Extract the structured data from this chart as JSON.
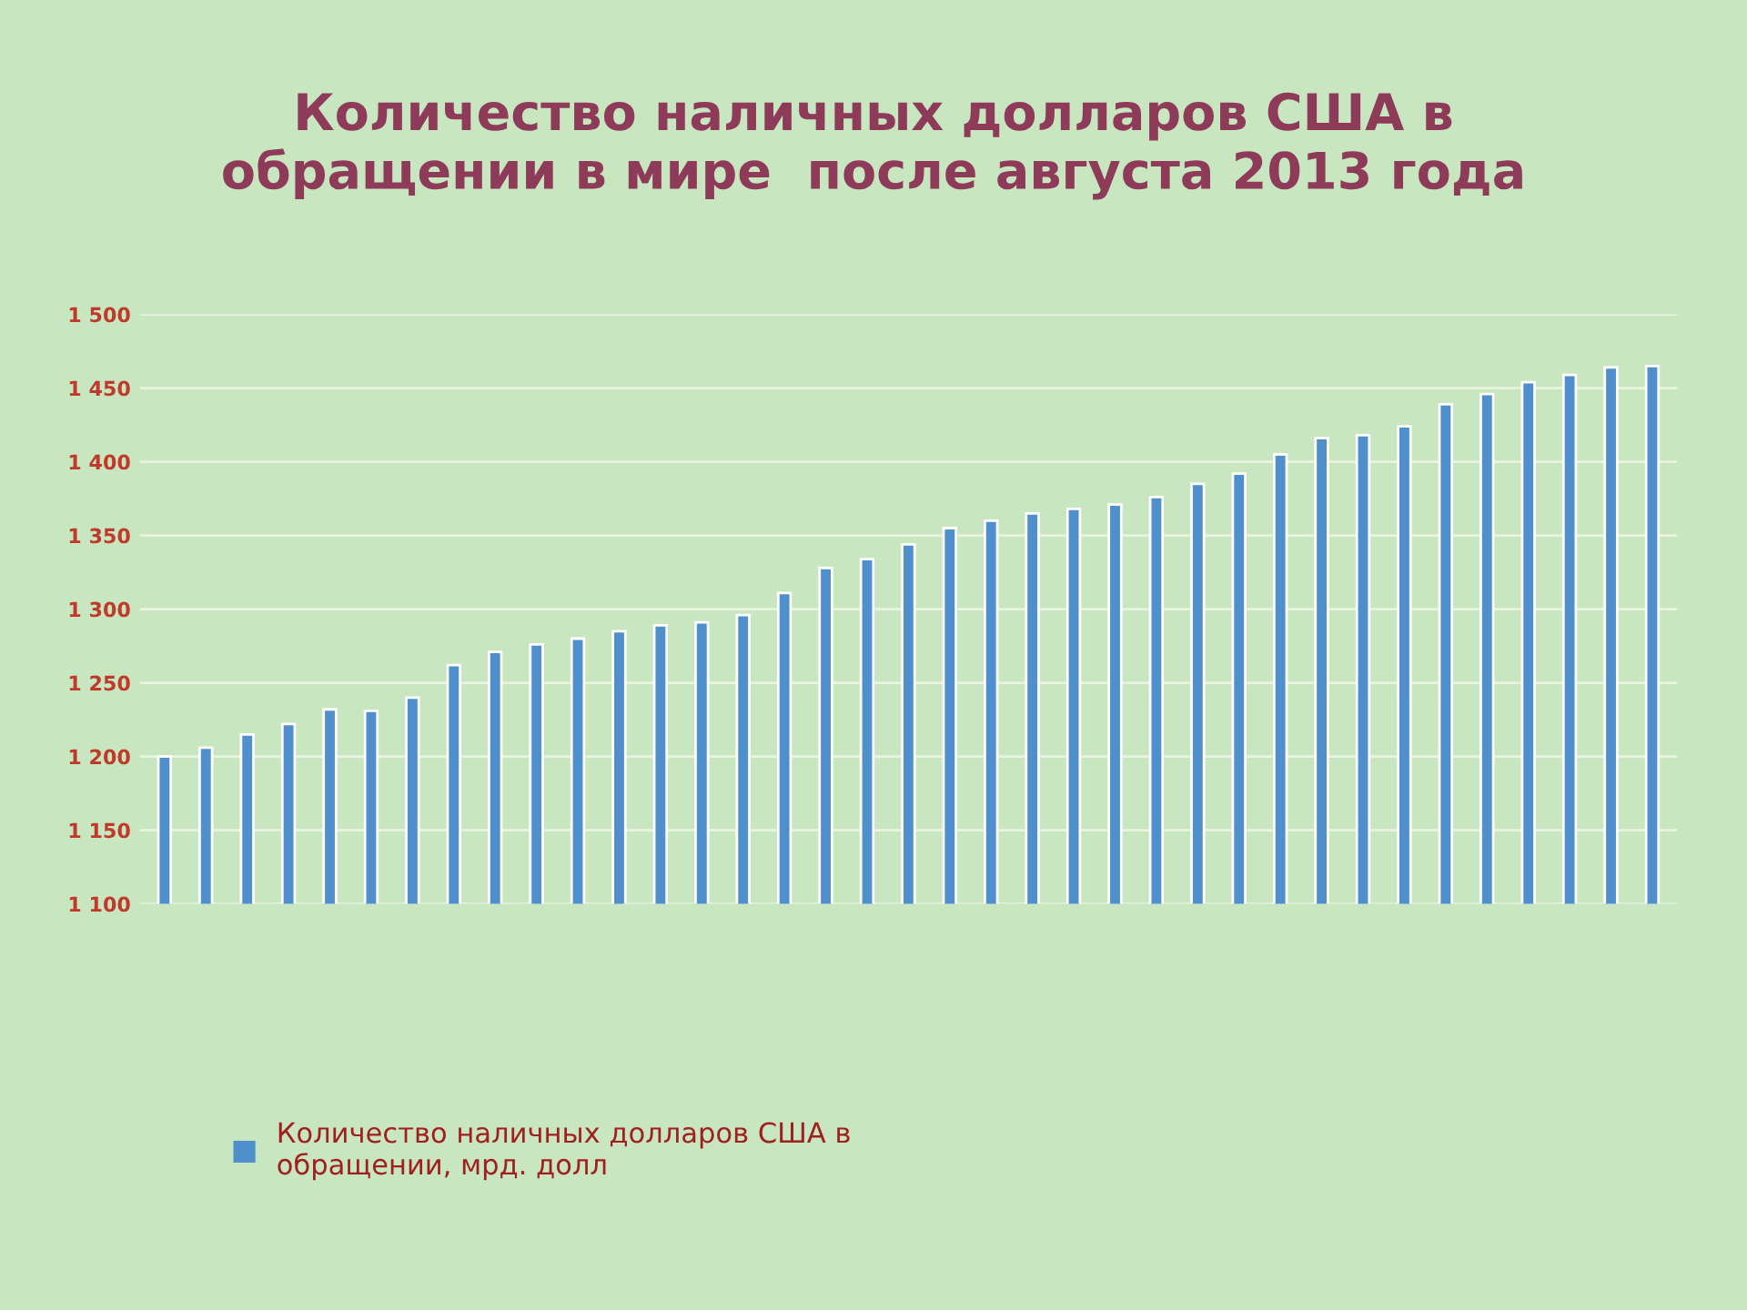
{
  "chart_data": {
    "type": "bar",
    "title": "Количество наличных долларов США в\nобращении в мире  после августа 2013 года",
    "categories": [
      null,
      null,
      null,
      null,
      null,
      null,
      null,
      null,
      null,
      null,
      null,
      null,
      null,
      null,
      null,
      null,
      null,
      null,
      null,
      null,
      null,
      null,
      null,
      null,
      null,
      null,
      null,
      null,
      null,
      null,
      null,
      null,
      null,
      null,
      null,
      null,
      null
    ],
    "series": [
      {
        "name": "Количество наличных долларов США в\nобращении, мрд. долл",
        "color": "#4f8fcc",
        "values": [
          1200,
          1206,
          1215,
          1222,
          1232,
          1231,
          1240,
          1262,
          1271,
          1276,
          1280,
          1285,
          1289,
          1291,
          1296,
          1311,
          1328,
          1334,
          1344,
          1355,
          1360,
          1365,
          1368,
          1371,
          1376,
          1385,
          1392,
          1405,
          1416,
          1418,
          1424,
          1439,
          1446,
          1454,
          1459,
          1464,
          1465
        ]
      }
    ],
    "ylim": [
      1100,
      1500
    ],
    "yticks": [
      {
        "value": 1100,
        "label": "1 100"
      },
      {
        "value": 1150,
        "label": "1 150"
      },
      {
        "value": 1200,
        "label": "1 200"
      },
      {
        "value": 1250,
        "label": "1 250"
      },
      {
        "value": 1300,
        "label": "1 300"
      },
      {
        "value": 1350,
        "label": "1 350"
      },
      {
        "value": 1400,
        "label": "1 400"
      },
      {
        "value": 1450,
        "label": "1 450"
      },
      {
        "value": 1500,
        "label": "1 500"
      }
    ],
    "grid": "y",
    "legend": "bottom left"
  }
}
